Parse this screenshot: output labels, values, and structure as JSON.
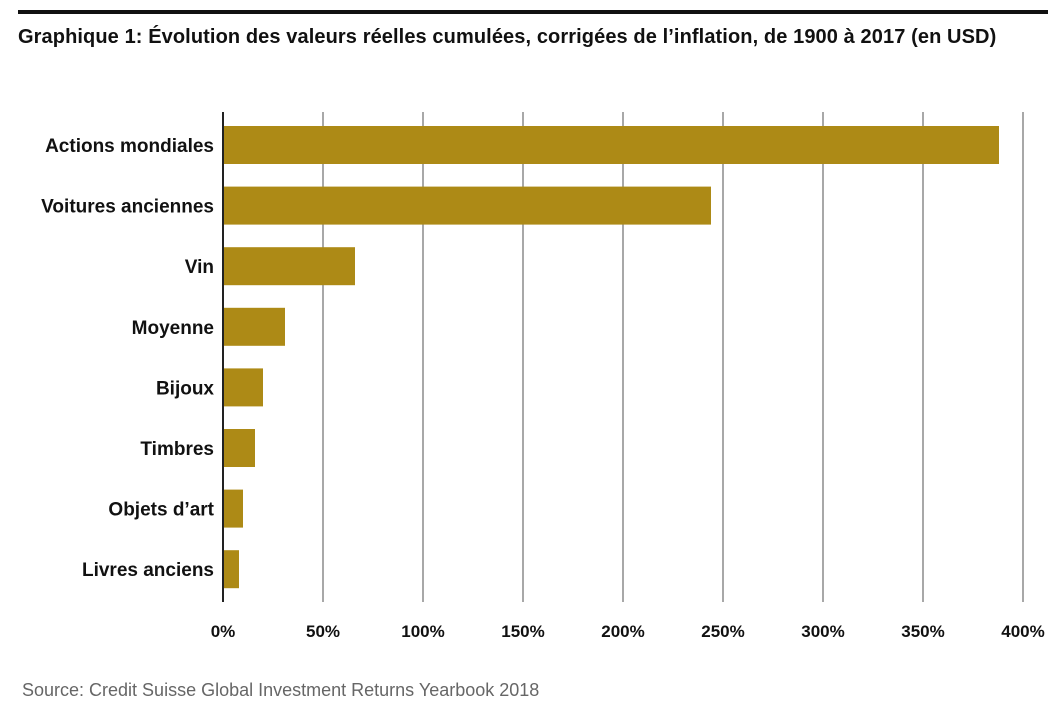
{
  "title": "Graphique 1: Évolution des valeurs réelles cumulées, corrigées de l’inflation, de 1900 à 2017 (en USD)",
  "source": "Source: Credit Suisse Global Investment Returns Yearbook 2018",
  "colors": {
    "bar": "#AD8A16",
    "grid": "#8C8C8C",
    "text": "#111111",
    "source": "#666666"
  },
  "chart_data": {
    "type": "bar",
    "orientation": "horizontal",
    "categories": [
      "Actions mondiales",
      "Voitures anciennes",
      "Vin",
      "Moyenne",
      "Bijoux",
      "Timbres",
      "Objets d’art",
      "Livres anciens"
    ],
    "values": [
      388,
      244,
      66,
      31,
      20,
      16,
      10,
      8
    ],
    "unit": "%",
    "xlim": [
      0,
      400
    ],
    "xticks": [
      0,
      50,
      100,
      150,
      200,
      250,
      300,
      350,
      400
    ],
    "xtick_labels": [
      "0%",
      "50%",
      "100%",
      "150%",
      "200%",
      "250%",
      "300%",
      "350%",
      "400%"
    ],
    "grid": "vertical",
    "legend": "none"
  }
}
